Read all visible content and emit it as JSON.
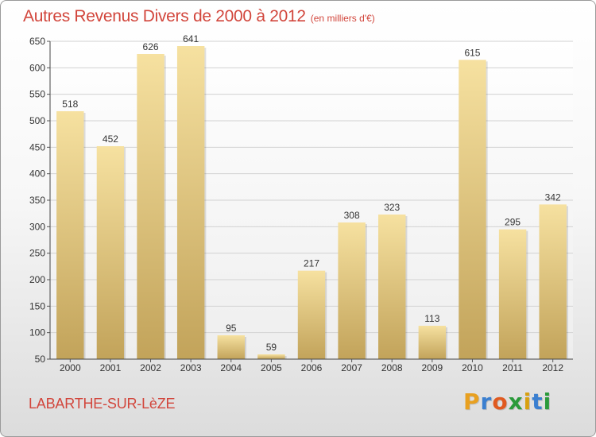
{
  "title": {
    "main": "Autres Revenus Divers de 2000 à 2012",
    "unit": "(en milliers d'€)"
  },
  "commune": "LABARTHE-SUR-LèZE",
  "brand": {
    "text": "Proxiti",
    "letter_colors": [
      "#e8a020",
      "#3a7fd0",
      "#e05a20",
      "#2a9a3a",
      "#d8a010",
      "#3a7fd0",
      "#2a9a3a"
    ]
  },
  "colors": {
    "title": "#d2463c",
    "bar_light": "#f6e1a0",
    "bar_dark": "#c2a35a",
    "grid": "#d2d2d2"
  },
  "chart_data": {
    "type": "bar",
    "categories": [
      "2000",
      "2001",
      "2002",
      "2003",
      "2004",
      "2005",
      "2006",
      "2007",
      "2008",
      "2009",
      "2010",
      "2011",
      "2012"
    ],
    "values": [
      518,
      452,
      626,
      641,
      95,
      59,
      217,
      308,
      323,
      113,
      615,
      295,
      342
    ],
    "ylim": [
      50,
      650
    ],
    "yticks": [
      50,
      100,
      150,
      200,
      250,
      300,
      350,
      400,
      450,
      500,
      550,
      600,
      650
    ],
    "grid": true,
    "data_labels": true
  }
}
